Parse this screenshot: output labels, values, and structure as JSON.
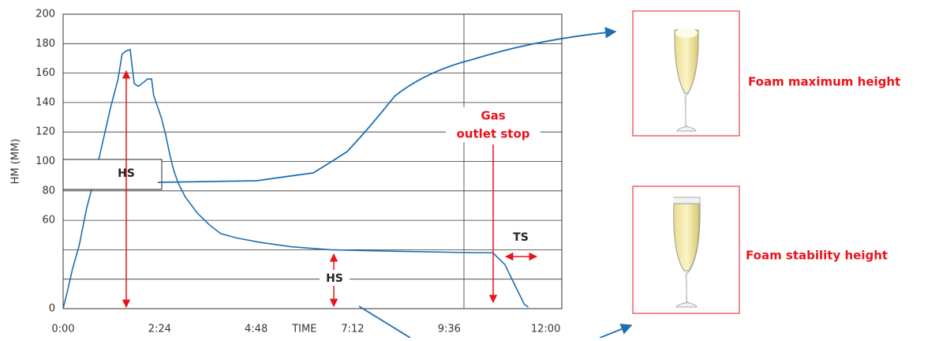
{
  "chart_data": {
    "type": "line",
    "y_label": "HM (MM)",
    "x_label": "TIME",
    "ylim": [
      0,
      200
    ],
    "yticks": [
      0,
      60,
      80,
      100,
      120,
      140,
      160,
      180,
      200
    ],
    "ygrid": [
      20,
      40,
      60,
      80,
      100,
      120,
      140,
      160,
      180,
      200
    ],
    "xlim": [
      0,
      744
    ],
    "xticks": [
      {
        "value": 0,
        "label": "0:00"
      },
      {
        "value": 144,
        "label": "2:24"
      },
      {
        "value": 288,
        "label": "4:48"
      },
      {
        "value": 432,
        "label": "7:12"
      },
      {
        "value": 576,
        "label": "9:36"
      },
      {
        "value": 720,
        "label": "12:00"
      }
    ],
    "vline": 598,
    "x": [
      0,
      6,
      14,
      24,
      35,
      47,
      59,
      71,
      82,
      88,
      94,
      100,
      106,
      112,
      118,
      126,
      132,
      135,
      141,
      147,
      153,
      159,
      165,
      171,
      182,
      200,
      218,
      235,
      259,
      294,
      341,
      400,
      494,
      612,
      641,
      659,
      676,
      688,
      694
    ],
    "series": [
      {
        "color": "#1a6fb5",
        "values": [
          0,
          11,
          27,
          43,
          68,
          89,
          113,
          137,
          156,
          173,
          175,
          176,
          153,
          151,
          153,
          156,
          156,
          145,
          137,
          129,
          118,
          105,
          94,
          86,
          76,
          65,
          57,
          51,
          48,
          45,
          42,
          40,
          39,
          38,
          38,
          30,
          14,
          3,
          1
        ]
      }
    ],
    "annotations": {
      "hs_box": "HS",
      "hs_lower": "HS",
      "gas_stop": [
        "Gas",
        "outlet stop"
      ],
      "ts": "TS"
    }
  },
  "panels": [
    {
      "caption": "Foam maximum height"
    },
    {
      "caption": "Foam stability height"
    }
  ]
}
